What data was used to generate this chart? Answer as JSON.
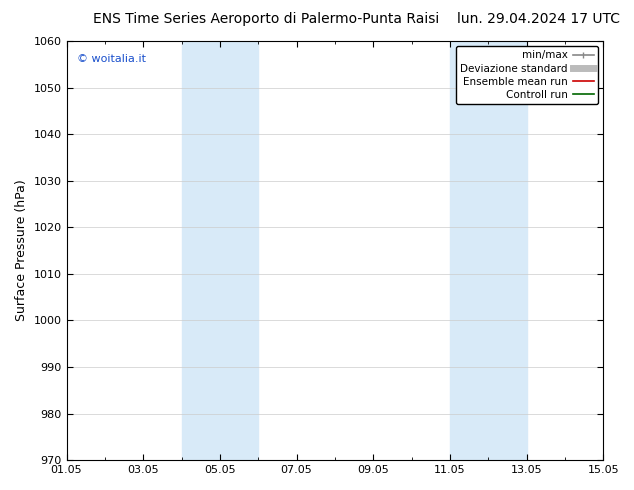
{
  "title_left": "ENS Time Series Aeroporto di Palermo-Punta Raisi",
  "title_right": "lun. 29.04.2024 17 UTC",
  "ylabel": "Surface Pressure (hPa)",
  "ylim": [
    970,
    1060
  ],
  "yticks": [
    970,
    980,
    990,
    1000,
    1010,
    1020,
    1030,
    1040,
    1050,
    1060
  ],
  "x_start": "2024-05-01",
  "x_end": "2024-05-15",
  "xlabels": [
    "01.05",
    "03.05",
    "05.05",
    "07.05",
    "09.05",
    "11.05",
    "13.05",
    "15.05"
  ],
  "xdays": [
    1,
    3,
    5,
    7,
    9,
    11,
    13,
    15
  ],
  "shaded_bands": [
    {
      "day0": 4.0,
      "day1": 6.0
    },
    {
      "day0": 11.0,
      "day1": 13.0
    }
  ],
  "shade_color": "#d8eaf8",
  "watermark": "© woitalia.it",
  "watermark_color": "#1a50cc",
  "legend_entries": [
    {
      "label": "min/max",
      "color": "#888888",
      "lw": 1.2
    },
    {
      "label": "Deviazione standard",
      "color": "#bbbbbb",
      "lw": 5
    },
    {
      "label": "Ensemble mean run",
      "color": "#cc0000",
      "lw": 1.2
    },
    {
      "label": "Controll run",
      "color": "#006600",
      "lw": 1.2
    }
  ],
  "bg_color": "#ffffff",
  "grid_color": "#cccccc",
  "title_fontsize": 10,
  "ylabel_fontsize": 9,
  "tick_fontsize": 8,
  "watermark_fontsize": 8,
  "legend_fontsize": 7.5
}
